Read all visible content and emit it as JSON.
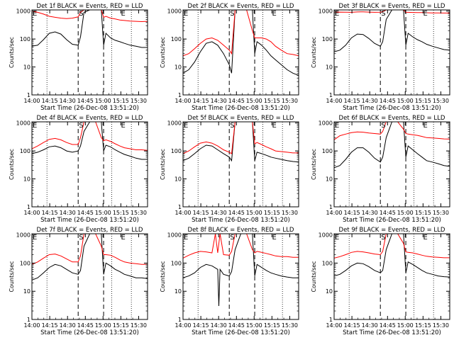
{
  "figure": {
    "xlabel": "Start Time (26-Dec-08 13:51:20)",
    "ylabel": "Counts/sec",
    "x_tick_labels": [
      "14:00",
      "14:15",
      "14:30",
      "14:45",
      "15:00",
      "15:15",
      "15:30"
    ],
    "y_tick_labels": [
      "1",
      "10",
      "100",
      "1000"
    ],
    "marker_labels": {
      "E1": "E",
      "S": "S",
      "E2": "E"
    },
    "colors": {
      "events": "#000000",
      "lld": "#ff0000",
      "axes": "#000000",
      "background": "#ffffff"
    }
  },
  "chart_data": [
    {
      "type": "line",
      "title": "Det 1f BLACK = Events, RED = LLD",
      "xlabel": "Start Time (26-Dec-08 13:51:20)",
      "ylabel": "Counts/sec",
      "y_scale": "log",
      "ylim": [
        1,
        1100
      ],
      "x_range_minutes": [
        0,
        100
      ],
      "series": [
        {
          "name": "BLACK = Events",
          "x": [
            0,
            5,
            10,
            15,
            20,
            25,
            30,
            35,
            40,
            42,
            45,
            50,
            55,
            60,
            62,
            64,
            68,
            72,
            76,
            80,
            85,
            90,
            95,
            100
          ],
          "y": [
            55,
            60,
            95,
            160,
            180,
            150,
            95,
            65,
            60,
            120,
            900,
            1100,
            1100,
            1100,
            60,
            160,
            110,
            90,
            80,
            70,
            60,
            55,
            50,
            50
          ]
        },
        {
          "name": "RED = LLD",
          "x": [
            0,
            5,
            10,
            15,
            20,
            25,
            30,
            35,
            40,
            42,
            45,
            50,
            55,
            60,
            62,
            64,
            68,
            72,
            76,
            80,
            85,
            90,
            95,
            100
          ],
          "y": [
            1000,
            900,
            780,
            650,
            600,
            560,
            540,
            560,
            620,
            900,
            1100,
            1100,
            1100,
            1100,
            600,
            650,
            560,
            520,
            480,
            460,
            440,
            430,
            420,
            430
          ]
        }
      ]
    },
    {
      "type": "line",
      "title": "Det 2f BLACK = Events, RED = LLD",
      "xlabel": "Start Time (26-Dec-08 13:51:20)",
      "ylabel": "Counts/sec",
      "y_scale": "log",
      "ylim": [
        1,
        1100
      ],
      "x_range_minutes": [
        0,
        100
      ],
      "series": [
        {
          "name": "BLACK = Events",
          "x": [
            0,
            5,
            10,
            15,
            20,
            25,
            30,
            35,
            40,
            42,
            45,
            50,
            55,
            60,
            62,
            64,
            68,
            72,
            76,
            80,
            85,
            90,
            95,
            100
          ],
          "y": [
            6,
            8,
            15,
            35,
            70,
            80,
            60,
            30,
            12,
            6,
            1100,
            1100,
            1100,
            1100,
            30,
            80,
            60,
            40,
            25,
            18,
            12,
            8,
            6,
            5
          ]
        },
        {
          "name": "RED = LLD",
          "x": [
            0,
            5,
            10,
            15,
            20,
            25,
            30,
            35,
            40,
            42,
            45,
            50,
            55,
            60,
            62,
            64,
            68,
            72,
            76,
            80,
            85,
            90,
            95,
            100
          ],
          "y": [
            25,
            30,
            45,
            70,
            100,
            110,
            90,
            60,
            40,
            30,
            1100,
            1100,
            1100,
            200,
            110,
            110,
            110,
            100,
            80,
            55,
            40,
            30,
            28,
            25
          ]
        }
      ]
    },
    {
      "type": "line",
      "title": "Det 3f BLACK = Events, RED = LLD",
      "xlabel": "Start Time (26-Dec-08 13:51:20)",
      "ylabel": "Counts/sec",
      "y_scale": "log",
      "ylim": [
        1,
        1100
      ],
      "x_range_minutes": [
        0,
        100
      ],
      "series": [
        {
          "name": "BLACK = Events",
          "x": [
            0,
            5,
            10,
            15,
            20,
            25,
            30,
            35,
            40,
            42,
            45,
            50,
            55,
            60,
            62,
            64,
            68,
            72,
            76,
            80,
            85,
            90,
            95,
            100
          ],
          "y": [
            35,
            40,
            60,
            110,
            150,
            145,
            105,
            70,
            55,
            80,
            500,
            1100,
            1100,
            1100,
            60,
            160,
            120,
            95,
            80,
            65,
            55,
            48,
            42,
            40
          ]
        },
        {
          "name": "RED = LLD",
          "x": [
            0,
            5,
            10,
            15,
            20,
            25,
            30,
            35,
            40,
            42,
            45,
            50,
            55,
            60,
            62,
            64,
            68,
            72,
            76,
            80,
            85,
            90,
            95,
            100
          ],
          "y": [
            900,
            920,
            910,
            900,
            930,
            940,
            920,
            900,
            910,
            950,
            1100,
            1100,
            1100,
            1100,
            900,
            900,
            890,
            880,
            880,
            870,
            860,
            860,
            850,
            850
          ]
        }
      ]
    },
    {
      "type": "line",
      "title": "Det 4f BLACK = Events, RED = LLD",
      "xlabel": "Start Time (26-Dec-08 13:51:20)",
      "ylabel": "Counts/sec",
      "y_scale": "log",
      "ylim": [
        1,
        1100
      ],
      "x_range_minutes": [
        0,
        100
      ],
      "series": [
        {
          "name": "BLACK = Events",
          "x": [
            0,
            5,
            10,
            15,
            20,
            25,
            30,
            35,
            40,
            42,
            45,
            50,
            55,
            60,
            62,
            64,
            68,
            72,
            76,
            80,
            85,
            90,
            95,
            100
          ],
          "y": [
            80,
            90,
            110,
            140,
            150,
            130,
            100,
            90,
            100,
            150,
            500,
            1100,
            1100,
            1100,
            100,
            160,
            140,
            110,
            90,
            75,
            65,
            55,
            50,
            50
          ]
        },
        {
          "name": "RED = LLD",
          "x": [
            0,
            5,
            10,
            15,
            20,
            25,
            30,
            35,
            40,
            42,
            45,
            50,
            55,
            60,
            62,
            64,
            68,
            72,
            76,
            80,
            85,
            90,
            95,
            100
          ],
          "y": [
            120,
            150,
            200,
            260,
            280,
            250,
            200,
            170,
            170,
            300,
            1100,
            1100,
            1100,
            300,
            230,
            250,
            220,
            180,
            150,
            130,
            120,
            110,
            110,
            105
          ]
        }
      ]
    },
    {
      "type": "line",
      "title": "Det 5f BLACK = Events, RED = LLD",
      "xlabel": "Start Time (26-Dec-08 13:51:20)",
      "ylabel": "Counts/sec",
      "y_scale": "log",
      "ylim": [
        1,
        1100
      ],
      "x_range_minutes": [
        0,
        100
      ],
      "series": [
        {
          "name": "BLACK = Events",
          "x": [
            0,
            5,
            10,
            15,
            20,
            25,
            30,
            35,
            40,
            42,
            45,
            50,
            55,
            60,
            62,
            64,
            68,
            72,
            76,
            80,
            85,
            90,
            95,
            100
          ],
          "y": [
            45,
            55,
            80,
            120,
            160,
            150,
            110,
            80,
            60,
            45,
            1100,
            1100,
            1100,
            1100,
            45,
            90,
            80,
            70,
            60,
            55,
            50,
            45,
            42,
            40
          ]
        },
        {
          "name": "RED = LLD",
          "x": [
            0,
            5,
            10,
            15,
            20,
            25,
            30,
            35,
            40,
            42,
            45,
            50,
            55,
            60,
            62,
            64,
            68,
            72,
            76,
            80,
            85,
            90,
            95,
            100
          ],
          "y": [
            80,
            100,
            140,
            190,
            210,
            190,
            150,
            110,
            90,
            80,
            1100,
            1100,
            1100,
            1100,
            180,
            200,
            170,
            140,
            120,
            100,
            95,
            90,
            85,
            85
          ]
        }
      ]
    },
    {
      "type": "line",
      "title": "Det 6f BLACK = Events, RED = LLD",
      "xlabel": "Start Time (26-Dec-08 13:51:20)",
      "ylabel": "Counts/sec",
      "y_scale": "log",
      "ylim": [
        1,
        1100
      ],
      "x_range_minutes": [
        0,
        100
      ],
      "series": [
        {
          "name": "BLACK = Events",
          "x": [
            0,
            5,
            10,
            15,
            20,
            25,
            30,
            35,
            40,
            42,
            45,
            50,
            55,
            60,
            62,
            64,
            68,
            72,
            76,
            80,
            85,
            90,
            95,
            100
          ],
          "y": [
            25,
            30,
            50,
            90,
            130,
            130,
            90,
            55,
            40,
            60,
            300,
            1100,
            1100,
            1100,
            60,
            150,
            110,
            80,
            60,
            45,
            40,
            35,
            30,
            28
          ]
        },
        {
          "name": "RED = LLD",
          "x": [
            0,
            5,
            10,
            15,
            20,
            25,
            30,
            35,
            40,
            42,
            45,
            50,
            55,
            60,
            62,
            64,
            68,
            72,
            76,
            80,
            85,
            90,
            95,
            100
          ],
          "y": [
            250,
            350,
            400,
            450,
            480,
            470,
            440,
            420,
            400,
            500,
            1100,
            1100,
            1100,
            600,
            420,
            400,
            380,
            360,
            330,
            300,
            290,
            280,
            270,
            265
          ]
        }
      ]
    },
    {
      "type": "line",
      "title": "Det 7f BLACK = Events, RED = LLD",
      "xlabel": "Start Time (26-Dec-08 13:51:20)",
      "ylabel": "Counts/sec",
      "y_scale": "log",
      "ylim": [
        1,
        1100
      ],
      "x_range_minutes": [
        0,
        100
      ],
      "series": [
        {
          "name": "BLACK = Events",
          "x": [
            0,
            5,
            10,
            15,
            20,
            25,
            30,
            35,
            40,
            42,
            45,
            50,
            55,
            60,
            62,
            64,
            68,
            72,
            76,
            80,
            85,
            90,
            95,
            100
          ],
          "y": [
            25,
            30,
            45,
            70,
            90,
            80,
            60,
            45,
            40,
            55,
            400,
            1100,
            1100,
            1100,
            40,
            100,
            80,
            60,
            50,
            40,
            35,
            30,
            30,
            28
          ]
        },
        {
          "name": "RED = LLD",
          "x": [
            0,
            5,
            10,
            15,
            20,
            25,
            30,
            35,
            40,
            42,
            45,
            50,
            55,
            60,
            62,
            64,
            68,
            72,
            76,
            80,
            85,
            90,
            95,
            100
          ],
          "y": [
            90,
            110,
            150,
            200,
            210,
            180,
            140,
            110,
            110,
            180,
            1100,
            1100,
            1100,
            400,
            200,
            200,
            190,
            160,
            130,
            110,
            100,
            95,
            90,
            90
          ]
        }
      ]
    },
    {
      "type": "line",
      "title": "Det 8f BLACK = Events, RED = LLD",
      "xlabel": "Start Time (26-Dec-08 13:51:20)",
      "ylabel": "Counts/sec",
      "y_scale": "log",
      "ylim": [
        1,
        1100
      ],
      "x_range_minutes": [
        0,
        100
      ],
      "series": [
        {
          "name": "BLACK = Events",
          "x": [
            0,
            5,
            10,
            15,
            20,
            25,
            30,
            31,
            32,
            35,
            40,
            42,
            45,
            50,
            55,
            60,
            62,
            64,
            68,
            72,
            76,
            80,
            85,
            90,
            95,
            100
          ],
          "y": [
            30,
            35,
            45,
            70,
            90,
            80,
            60,
            3,
            60,
            40,
            35,
            50,
            300,
            1100,
            1100,
            1100,
            35,
            90,
            70,
            55,
            45,
            40,
            35,
            32,
            30,
            30
          ]
        },
        {
          "name": "RED = LLD",
          "x": [
            0,
            5,
            10,
            15,
            20,
            25,
            28,
            30,
            32,
            35,
            40,
            42,
            45,
            50,
            55,
            60,
            62,
            64,
            68,
            72,
            76,
            80,
            85,
            90,
            95,
            100
          ],
          "y": [
            150,
            190,
            230,
            260,
            250,
            230,
            1100,
            230,
            1100,
            200,
            190,
            260,
            1100,
            1100,
            1100,
            300,
            230,
            260,
            240,
            220,
            200,
            180,
            170,
            170,
            160,
            160
          ]
        }
      ]
    },
    {
      "type": "line",
      "title": "Det 9f BLACK = Events, RED = LLD",
      "xlabel": "Start Time (26-Dec-08 13:51:20)",
      "ylabel": "Counts/sec",
      "y_scale": "log",
      "ylim": [
        1,
        1100
      ],
      "x_range_minutes": [
        0,
        100
      ],
      "series": [
        {
          "name": "BLACK = Events",
          "x": [
            0,
            5,
            10,
            15,
            20,
            25,
            30,
            35,
            40,
            42,
            45,
            50,
            55,
            60,
            62,
            64,
            68,
            72,
            76,
            80,
            85,
            90,
            95,
            100
          ],
          "y": [
            35,
            40,
            55,
            80,
            100,
            95,
            75,
            55,
            45,
            55,
            300,
            1100,
            1100,
            1100,
            45,
            110,
            90,
            70,
            55,
            45,
            40,
            35,
            33,
            32
          ]
        },
        {
          "name": "RED = LLD",
          "x": [
            0,
            5,
            10,
            15,
            20,
            25,
            30,
            35,
            40,
            42,
            45,
            50,
            55,
            60,
            62,
            64,
            68,
            72,
            76,
            80,
            85,
            90,
            95,
            100
          ],
          "y": [
            150,
            170,
            200,
            240,
            260,
            250,
            230,
            210,
            200,
            260,
            1100,
            1100,
            1100,
            500,
            250,
            240,
            230,
            210,
            190,
            175,
            165,
            160,
            155,
            155
          ]
        }
      ]
    }
  ]
}
